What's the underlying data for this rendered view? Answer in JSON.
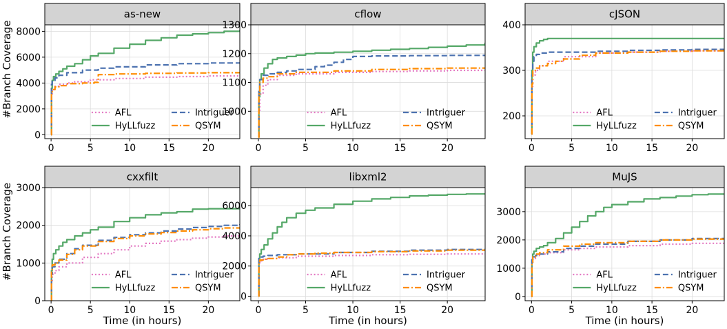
{
  "chart_data": {
    "type": "line",
    "xlabel": "Time (in hours)",
    "ylabel": "#Branch Coverage",
    "xlim": [
      -0.8,
      24
    ],
    "xticks": [
      0,
      5,
      10,
      15,
      20
    ],
    "grid": true,
    "legend_placement": "lower-right",
    "series_styles": [
      {
        "name": "AFL",
        "color": "#e377c2",
        "dash": "dotted"
      },
      {
        "name": "HyLLfuzz",
        "color": "#55a868",
        "dash": "solid"
      },
      {
        "name": "Intriguer",
        "color": "#4c72b0",
        "dash": "dashed"
      },
      {
        "name": "QSYM",
        "color": "#ff8c00",
        "dash": "dashdot"
      }
    ],
    "panels": [
      {
        "title": "as-new",
        "ylim": [
          -300,
          8500
        ],
        "yticks": [
          0,
          2000,
          4000,
          6000,
          8000
        ],
        "series": [
          {
            "name": "AFL",
            "x": [
              0,
              0.05,
              0.15,
              0.5,
              1,
              2,
              3,
              5,
              8,
              12,
              16,
              20,
              24
            ],
            "values": [
              0,
              3000,
              3500,
              3750,
              3900,
              4000,
              4100,
              4250,
              4350,
              4450,
              4500,
              4550,
              4600
            ]
          },
          {
            "name": "HyLLfuzz",
            "x": [
              0,
              0.05,
              0.15,
              0.3,
              0.6,
              1,
              1.5,
              2,
              3,
              4,
              5,
              6,
              8,
              10,
              12,
              14,
              16,
              18,
              20,
              22,
              24
            ],
            "values": [
              0,
              3600,
              4200,
              4500,
              4700,
              4900,
              5100,
              5300,
              5500,
              5800,
              6100,
              6300,
              6700,
              7000,
              7300,
              7500,
              7700,
              7800,
              7900,
              8000,
              8100
            ]
          },
          {
            "name": "Intriguer",
            "x": [
              0,
              0.05,
              0.15,
              0.5,
              1,
              2,
              4,
              6,
              8,
              12,
              16,
              20,
              24
            ],
            "values": [
              0,
              3900,
              4200,
              4400,
              4600,
              4800,
              5000,
              5150,
              5250,
              5400,
              5500,
              5550,
              5600
            ]
          },
          {
            "name": "QSYM",
            "x": [
              0,
              0.05,
              0.15,
              0.5,
              1,
              2,
              4,
              5.5,
              6,
              8,
              12,
              16,
              20,
              24
            ],
            "values": [
              0,
              3200,
              3500,
              3700,
              3800,
              3950,
              4000,
              4050,
              4650,
              4700,
              4750,
              4780,
              4800,
              4820
            ]
          }
        ]
      },
      {
        "title": "cflow",
        "ylim": [
          905,
          1300
        ],
        "yticks": [
          1000,
          1100,
          1200,
          1300
        ],
        "series": [
          {
            "name": "AFL",
            "x": [
              0,
              0.05,
              0.15,
              0.5,
              1,
              2,
              4,
              8,
              12,
              16,
              20,
              24
            ],
            "values": [
              910,
              1000,
              1060,
              1090,
              1110,
              1125,
              1130,
              1135,
              1138,
              1140,
              1142,
              1145
            ]
          },
          {
            "name": "HyLLfuzz",
            "x": [
              0,
              0.05,
              0.15,
              0.3,
              0.6,
              1,
              1.5,
              2,
              3,
              4,
              5,
              6,
              8,
              10,
              12,
              14,
              16,
              18,
              20,
              22,
              24
            ],
            "values": [
              910,
              1050,
              1110,
              1130,
              1150,
              1165,
              1180,
              1185,
              1190,
              1195,
              1200,
              1202,
              1205,
              1208,
              1212,
              1215,
              1218,
              1222,
              1226,
              1230,
              1238
            ]
          },
          {
            "name": "Intriguer",
            "x": [
              0,
              0.05,
              0.15,
              0.5,
              1,
              2,
              3,
              4,
              6,
              7,
              8,
              9,
              10,
              12,
              16,
              20,
              24
            ],
            "values": [
              910,
              1080,
              1110,
              1125,
              1130,
              1135,
              1140,
              1145,
              1155,
              1160,
              1170,
              1180,
              1190,
              1192,
              1193,
              1194,
              1195
            ]
          },
          {
            "name": "QSYM",
            "x": [
              0,
              0.05,
              0.15,
              0.5,
              1,
              2,
              4,
              8,
              12,
              16,
              20,
              24
            ],
            "values": [
              910,
              1060,
              1100,
              1115,
              1120,
              1130,
              1135,
              1140,
              1145,
              1148,
              1150,
              1152
            ]
          }
        ]
      },
      {
        "title": "cJSON",
        "ylim": [
          150,
          400
        ],
        "yticks": [
          200,
          300,
          400
        ],
        "series": [
          {
            "name": "AFL",
            "x": [
              0,
              0.05,
              0.15,
              0.5,
              1,
              2,
              4,
              8,
              12,
              16,
              20,
              24
            ],
            "values": [
              160,
              260,
              290,
              300,
              310,
              320,
              330,
              338,
              340,
              342,
              343,
              345
            ]
          },
          {
            "name": "HyLLfuzz",
            "x": [
              0,
              0.05,
              0.15,
              0.3,
              0.6,
              1,
              1.5,
              2,
              4,
              8,
              12,
              16,
              20,
              24
            ],
            "values": [
              160,
              300,
              340,
              352,
              360,
              365,
              368,
              370,
              370,
              370,
              370,
              370,
              370,
              370
            ]
          },
          {
            "name": "Intriguer",
            "x": [
              0,
              0.05,
              0.15,
              0.3,
              0.6,
              1,
              2,
              4,
              8,
              12,
              16,
              20,
              24
            ],
            "values": [
              160,
              290,
              320,
              330,
              335,
              338,
              340,
              340,
              342,
              344,
              345,
              346,
              347
            ]
          },
          {
            "name": "QSYM",
            "x": [
              0,
              0.05,
              0.15,
              0.5,
              1,
              2,
              3,
              4,
              6,
              8,
              12,
              16,
              20,
              24
            ],
            "values": [
              160,
              270,
              300,
              305,
              310,
              315,
              320,
              325,
              333,
              338,
              340,
              342,
              343,
              344
            ]
          }
        ]
      },
      {
        "title": "cxxfilt",
        "ylim": [
          0,
          3000
        ],
        "yticks": [
          0,
          1000,
          2000,
          3000
        ],
        "series": [
          {
            "name": "AFL",
            "x": [
              0,
              0.05,
              0.15,
              0.5,
              1,
              2,
              4,
              6,
              8,
              10,
              12,
              14,
              16,
              18,
              20,
              22,
              24
            ],
            "values": [
              0,
              500,
              700,
              800,
              900,
              1000,
              1150,
              1250,
              1350,
              1450,
              1520,
              1580,
              1620,
              1660,
              1690,
              1720,
              1750
            ]
          },
          {
            "name": "HyLLfuzz",
            "x": [
              0,
              0.05,
              0.15,
              0.3,
              0.6,
              1,
              1.5,
              2,
              3,
              4,
              5,
              6,
              8,
              10,
              12,
              14,
              16,
              18,
              20,
              22,
              24
            ],
            "values": [
              0,
              800,
              1100,
              1250,
              1350,
              1450,
              1550,
              1620,
              1720,
              1800,
              1880,
              1950,
              2100,
              2200,
              2280,
              2330,
              2360,
              2430,
              2440,
              2440,
              2440
            ]
          },
          {
            "name": "Intriguer",
            "x": [
              0,
              0.05,
              0.15,
              0.5,
              1,
              2,
              3,
              4,
              6,
              8,
              10,
              12,
              14,
              16,
              18,
              20,
              22,
              24
            ],
            "values": [
              0,
              700,
              900,
              1000,
              1100,
              1250,
              1380,
              1470,
              1600,
              1680,
              1750,
              1800,
              1850,
              1900,
              1940,
              1970,
              2000,
              2030
            ]
          },
          {
            "name": "QSYM",
            "x": [
              0,
              0.05,
              0.15,
              0.5,
              1,
              2,
              3,
              4,
              6,
              8,
              10,
              12,
              14,
              16,
              18,
              20,
              22,
              24
            ],
            "values": [
              0,
              800,
              950,
              1000,
              1080,
              1230,
              1350,
              1450,
              1570,
              1650,
              1720,
              1770,
              1810,
              1850,
              1880,
              1910,
              1930,
              1950
            ]
          }
        ]
      },
      {
        "title": "libxml2",
        "ylim": [
          -300,
          7200
        ],
        "yticks": [
          0,
          2000,
          4000,
          6000
        ],
        "series": [
          {
            "name": "AFL",
            "x": [
              0,
              0.05,
              0.15,
              0.5,
              1,
              2,
              4,
              8,
              12,
              16,
              20,
              24
            ],
            "values": [
              0,
              2200,
              2350,
              2450,
              2500,
              2550,
              2650,
              2700,
              2750,
              2780,
              2800,
              2820
            ]
          },
          {
            "name": "HyLLfuzz",
            "x": [
              0,
              0.05,
              0.15,
              0.3,
              0.6,
              1,
              1.5,
              2,
              2.5,
              3,
              4,
              5,
              6,
              8,
              10,
              12,
              14,
              16,
              18,
              20,
              22,
              24
            ],
            "values": [
              0,
              2500,
              2800,
              3100,
              3400,
              3800,
              4200,
              4600,
              4900,
              5200,
              5500,
              5700,
              5850,
              6100,
              6300,
              6450,
              6550,
              6650,
              6700,
              6750,
              6780,
              6800
            ]
          },
          {
            "name": "Intriguer",
            "x": [
              0,
              0.05,
              0.15,
              0.5,
              1,
              2,
              4,
              8,
              12,
              16,
              20,
              24
            ],
            "values": [
              0,
              2500,
              2600,
              2650,
              2700,
              2750,
              2800,
              2900,
              2980,
              3050,
              3100,
              3150
            ]
          },
          {
            "name": "QSYM",
            "x": [
              0,
              0.05,
              0.15,
              0.5,
              1,
              2,
              3,
              4,
              6,
              8,
              12,
              16,
              20,
              24
            ],
            "values": [
              0,
              2300,
              2400,
              2450,
              2500,
              2600,
              2750,
              2800,
              2850,
              2900,
              2950,
              3000,
              3050,
              3080
            ]
          }
        ]
      },
      {
        "title": "MuJS",
        "ylim": [
          -150,
          3850
        ],
        "yticks": [
          0,
          1000,
          2000,
          3000
        ],
        "series": [
          {
            "name": "AFL",
            "x": [
              0,
              0.05,
              0.15,
              0.5,
              1,
              2,
              4,
              6,
              8,
              12,
              16,
              20,
              24
            ],
            "values": [
              0,
              1200,
              1350,
              1450,
              1500,
              1550,
              1650,
              1700,
              1750,
              1800,
              1850,
              1880,
              1920
            ]
          },
          {
            "name": "HyLLfuzz",
            "x": [
              0,
              0.05,
              0.15,
              0.3,
              0.6,
              1,
              1.5,
              2,
              3,
              4,
              5,
              6,
              7,
              8,
              9,
              10,
              12,
              14,
              16,
              18,
              20,
              22,
              24
            ],
            "values": [
              0,
              1300,
              1500,
              1600,
              1700,
              1750,
              1800,
              1900,
              2050,
              2250,
              2450,
              2650,
              2850,
              3000,
              3150,
              3250,
              3350,
              3450,
              3500,
              3550,
              3600,
              3620,
              3650
            ]
          },
          {
            "name": "Intriguer",
            "x": [
              0,
              0.05,
              0.15,
              0.5,
              1,
              2,
              4,
              6,
              8,
              12,
              16,
              20,
              24
            ],
            "values": [
              0,
              1300,
              1400,
              1450,
              1500,
              1580,
              1700,
              1780,
              1850,
              1950,
              2000,
              2050,
              2080
            ]
          },
          {
            "name": "QSYM",
            "x": [
              0,
              0.05,
              0.15,
              0.5,
              1,
              2,
              4,
              6,
              8,
              12,
              16,
              20,
              24
            ],
            "values": [
              0,
              1200,
              1400,
              1500,
              1550,
              1650,
              1780,
              1850,
              1900,
              1950,
              2000,
              2030,
              2050
            ]
          }
        ]
      }
    ]
  }
}
